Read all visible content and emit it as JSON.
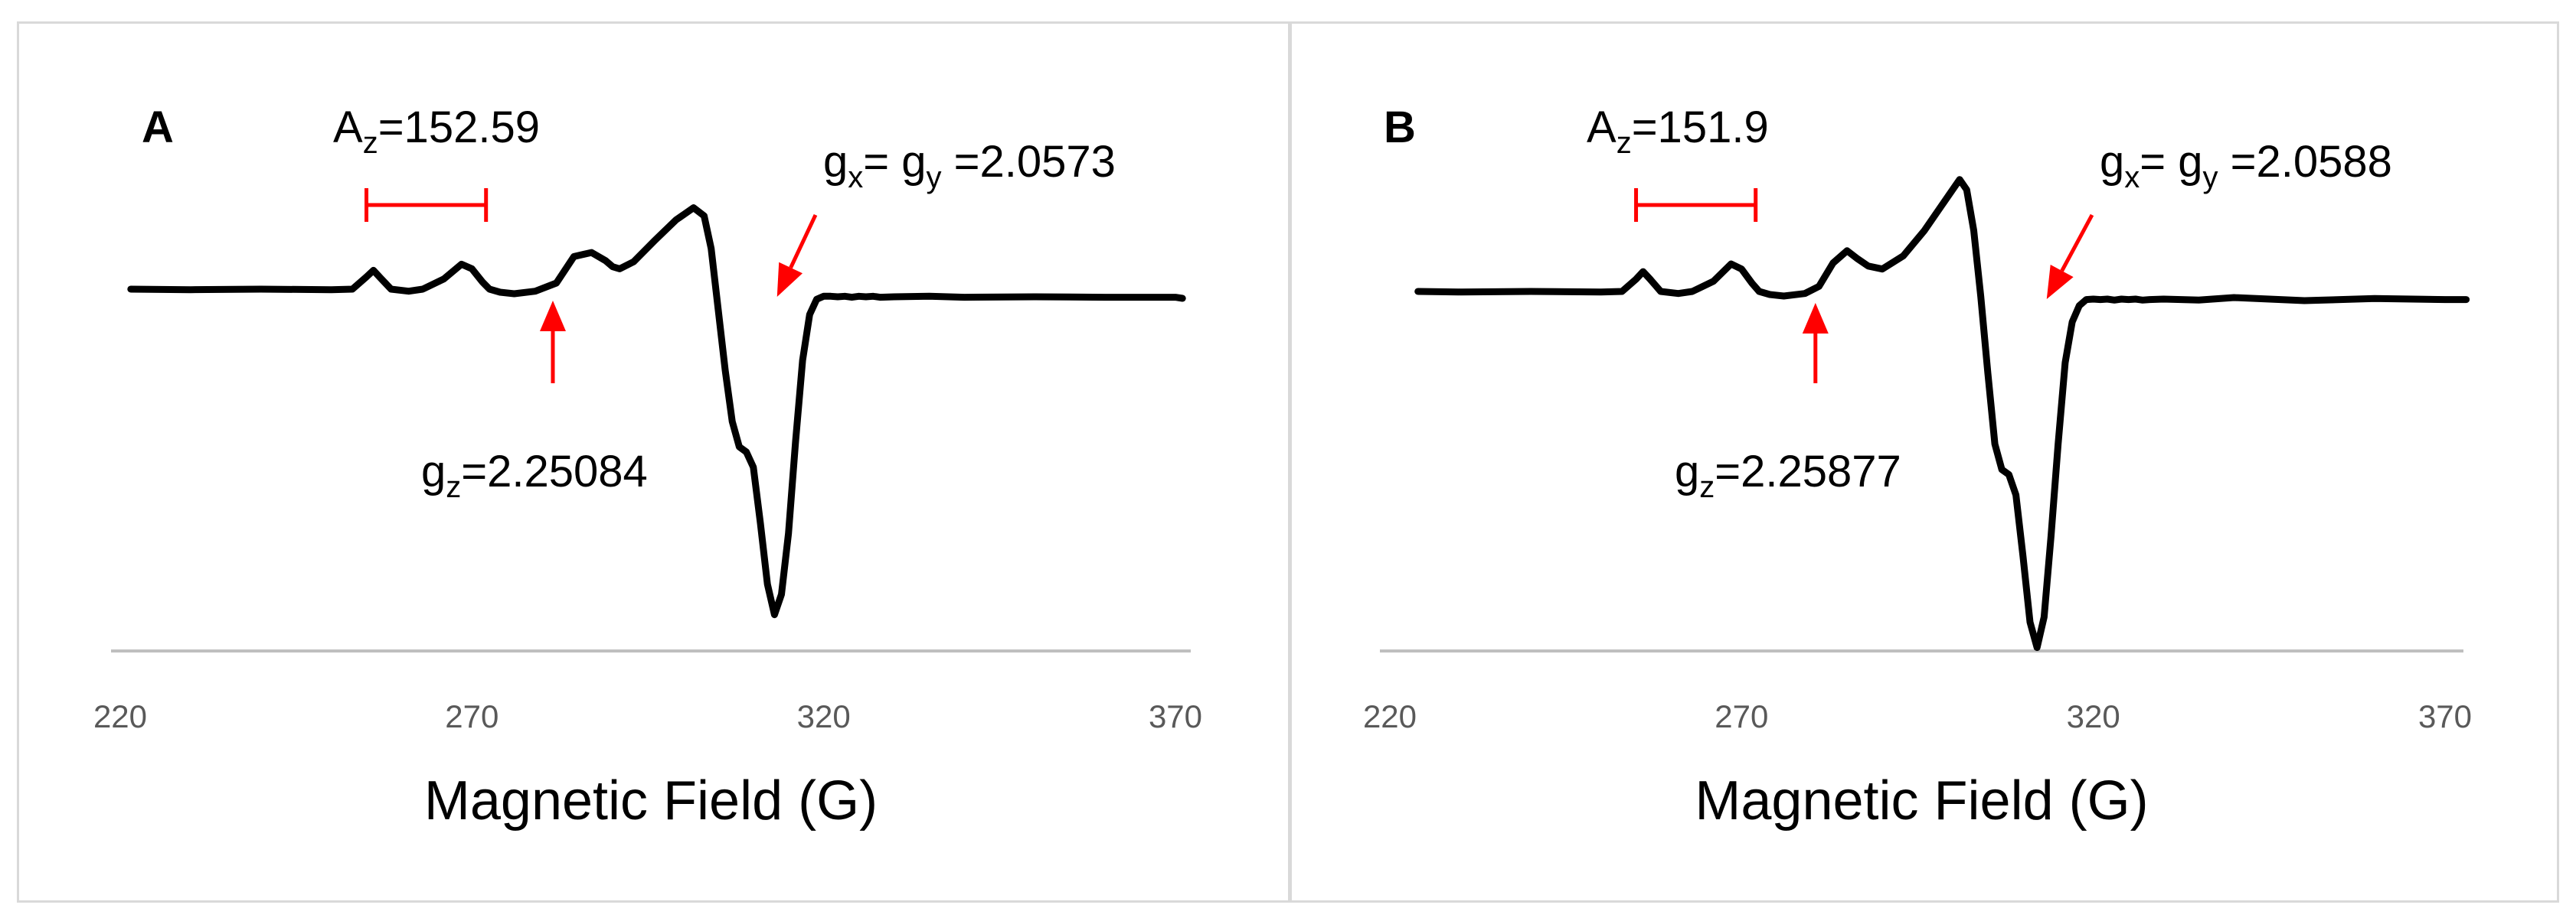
{
  "chart_data": [
    {
      "type": "line",
      "panel_label": "A",
      "xlabel": "Magnetic Field (G)",
      "ylabel": "",
      "xlim": [
        220,
        375
      ],
      "xticks": [
        220,
        270,
        320,
        370
      ],
      "grid": false,
      "annotations": {
        "az": {
          "main": "A",
          "sub": "z",
          "rest": "=152.59"
        },
        "gxy": {
          "g1": "g",
          "s1": "x",
          "mid": "= g",
          "s2": "y",
          "rest": " =2.0573"
        },
        "gz": {
          "main": "g",
          "sub": "z",
          "rest": "=2.25084"
        }
      },
      "marks": {
        "az_range": [
          255,
          272
        ],
        "gz_field": 281.5,
        "gxy_field": 312.5
      },
      "series": [
        {
          "x": [
            221.5,
            230,
            240,
            250,
            253,
            255,
            256,
            257,
            258.5,
            261,
            263,
            266,
            268.5,
            270,
            271.5,
            272.5,
            274,
            276,
            279,
            282,
            284.5,
            287,
            289,
            290,
            291,
            293,
            296,
            299,
            301.5,
            303,
            304,
            305,
            306,
            307,
            308,
            309,
            310,
            311,
            312,
            313,
            314,
            315,
            316,
            317,
            318,
            319,
            320,
            321,
            322,
            323,
            324,
            325,
            326,
            327,
            328,
            330,
            335,
            340,
            350,
            360,
            370,
            371
          ],
          "y": [
            0.0,
            -0.005,
            0.0,
            -0.005,
            0.0,
            0.12,
            0.185,
            0.11,
            0.0,
            -0.02,
            0.0,
            0.1,
            0.245,
            0.2,
            0.07,
            0.0,
            -0.03,
            -0.045,
            -0.02,
            0.06,
            0.32,
            0.36,
            0.28,
            0.22,
            0.2,
            0.27,
            0.48,
            0.68,
            0.8,
            0.72,
            0.4,
            -0.2,
            -0.8,
            -1.3,
            -1.55,
            -1.6,
            -1.75,
            -2.3,
            -2.9,
            -3.2,
            -3.0,
            -2.4,
            -1.5,
            -0.7,
            -0.25,
            -0.1,
            -0.07,
            -0.07,
            -0.075,
            -0.07,
            -0.08,
            -0.07,
            -0.075,
            -0.07,
            -0.08,
            -0.075,
            -0.07,
            -0.08,
            -0.075,
            -0.08,
            -0.08,
            -0.09
          ]
        }
      ]
    },
    {
      "type": "line",
      "panel_label": "B",
      "xlabel": "Magnetic Field (G)",
      "ylabel": "",
      "xlim": [
        220,
        375
      ],
      "xticks": [
        220,
        270,
        320,
        370
      ],
      "grid": false,
      "annotations": {
        "az": {
          "main": "A",
          "sub": "z",
          "rest": "=151.9"
        },
        "gxy": {
          "g1": "g",
          "s1": "x",
          "mid": "= g",
          "s2": "y",
          "rest": " =2.0588"
        },
        "gz": {
          "main": "g",
          "sub": "z",
          "rest": "=2.25877"
        }
      },
      "marks": {
        "az_range": [
          255,
          272
        ],
        "gz_field": 280.5,
        "gxy_field": 312.5
      },
      "series": [
        {
          "x": [
            224,
            230,
            240,
            250,
            253,
            255,
            256,
            257,
            258.5,
            261,
            263,
            266,
            268.5,
            270,
            271.5,
            272.5,
            274,
            276,
            279,
            281,
            283,
            285,
            286.5,
            288,
            290,
            293,
            296,
            299,
            301,
            302,
            303,
            304,
            305,
            306,
            307,
            308,
            309,
            310,
            311,
            312,
            313,
            314,
            315,
            316,
            317,
            318,
            319,
            320,
            321,
            322,
            323,
            324,
            325,
            326,
            327,
            328,
            330,
            335,
            340,
            350,
            360,
            370,
            373
          ],
          "y": [
            0.0,
            -0.005,
            0.0,
            -0.005,
            0.0,
            0.12,
            0.195,
            0.12,
            0.0,
            -0.02,
            0.0,
            0.1,
            0.27,
            0.22,
            0.08,
            0.0,
            -0.03,
            -0.045,
            -0.02,
            0.05,
            0.28,
            0.4,
            0.32,
            0.25,
            0.22,
            0.35,
            0.6,
            0.9,
            1.1,
            1.0,
            0.6,
            -0.05,
            -0.8,
            -1.5,
            -1.75,
            -1.8,
            -2.0,
            -2.6,
            -3.25,
            -3.5,
            -3.2,
            -2.4,
            -1.5,
            -0.7,
            -0.3,
            -0.14,
            -0.08,
            -0.075,
            -0.08,
            -0.075,
            -0.085,
            -0.075,
            -0.08,
            -0.075,
            -0.085,
            -0.08,
            -0.075,
            -0.085,
            -0.06,
            -0.09,
            -0.07,
            -0.08,
            -0.08
          ]
        }
      ]
    }
  ]
}
